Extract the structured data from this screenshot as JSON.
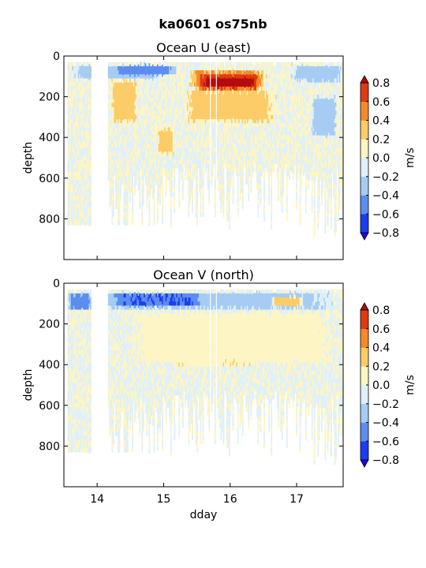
{
  "figure": {
    "title": "ka0601 os75nb"
  },
  "chart_data": [
    {
      "type": "heatmap",
      "title": "Ocean U (east)",
      "xlabel": "",
      "ylabel": "depth",
      "xlim": [
        13.5,
        17.7
      ],
      "ylim": [
        1000,
        0
      ],
      "xticks": [
        14,
        15,
        16,
        17
      ],
      "xticklabels": [],
      "yticks": [
        0,
        200,
        400,
        600,
        800
      ],
      "yticklabels": [
        "0",
        "200",
        "400",
        "600",
        "800"
      ],
      "colorbar": {
        "label": "m/s",
        "levels": [
          -0.8,
          -0.6,
          -0.4,
          -0.2,
          0.0,
          0.2,
          0.4,
          0.6,
          0.8
        ],
        "ticklabels": [
          "0.8",
          "0.6",
          "0.4",
          "0.2",
          "0.0",
          "−0.2",
          "−0.4",
          "−0.6",
          "−0.8"
        ],
        "colors": [
          "#2a00e0",
          "#1c3cf0",
          "#5c8ef0",
          "#a6ccf4",
          "#dff0fa",
          "#fdf5c4",
          "#fbcc68",
          "#f58a28",
          "#e03a10",
          "#b40a10"
        ]
      },
      "features": [
        {
          "x": [
            15.35,
            16.55
          ],
          "depth": [
            60,
            140
          ],
          "value": 0.5
        },
        {
          "x": [
            15.45,
            16.5
          ],
          "depth": [
            80,
            160
          ],
          "value": 0.7
        },
        {
          "x": [
            15.55,
            16.4
          ],
          "depth": [
            90,
            150
          ],
          "value": 0.9
        },
        {
          "x": [
            15.25,
            16.7
          ],
          "depth": [
            150,
            320
          ],
          "value": 0.3
        },
        {
          "x": [
            14.2,
            14.6
          ],
          "depth": [
            100,
            330
          ],
          "value": 0.3
        },
        {
          "x": [
            14.9,
            15.15
          ],
          "depth": [
            340,
            480
          ],
          "value": 0.3
        },
        {
          "x": [
            13.55,
            15.0
          ],
          "depth": [
            30,
            110
          ],
          "value": -0.3
        },
        {
          "x": [
            14.2,
            15.2
          ],
          "depth": [
            30,
            90
          ],
          "value": -0.5
        },
        {
          "x": [
            16.9,
            17.7
          ],
          "depth": [
            30,
            120
          ],
          "value": -0.3
        },
        {
          "x": [
            17.2,
            17.6
          ],
          "depth": [
            180,
            400
          ],
          "value": -0.3
        }
      ]
    },
    {
      "type": "heatmap",
      "title": "Ocean V (north)",
      "xlabel": "dday",
      "ylabel": "depth",
      "xlim": [
        13.5,
        17.7
      ],
      "ylim": [
        1000,
        0
      ],
      "xticks": [
        14,
        15,
        16,
        17
      ],
      "xticklabels": [
        "14",
        "15",
        "16",
        "17"
      ],
      "yticks": [
        0,
        200,
        400,
        600,
        800
      ],
      "yticklabels": [
        "0",
        "200",
        "400",
        "600",
        "800"
      ],
      "colorbar": {
        "label": "m/s",
        "levels": [
          -0.8,
          -0.6,
          -0.4,
          -0.2,
          0.0,
          0.2,
          0.4,
          0.6,
          0.8
        ],
        "ticklabels": [
          "0.8",
          "0.6",
          "0.4",
          "0.2",
          "0.0",
          "−0.2",
          "−0.4",
          "−0.6",
          "−0.8"
        ],
        "colors": [
          "#2a00e0",
          "#1c3cf0",
          "#5c8ef0",
          "#a6ccf4",
          "#dff0fa",
          "#fdf5c4",
          "#fbcc68",
          "#f58a28",
          "#e03a10",
          "#b40a10"
        ]
      },
      "features": [
        {
          "x": [
            13.55,
            17.7
          ],
          "depth": [
            30,
            120
          ],
          "value": -0.3
        },
        {
          "x": [
            14.2,
            15.6
          ],
          "depth": [
            40,
            110
          ],
          "value": -0.6
        },
        {
          "x": [
            13.55,
            13.9
          ],
          "depth": [
            40,
            120
          ],
          "value": -0.5
        },
        {
          "x": [
            16.6,
            17.1
          ],
          "depth": [
            50,
            110
          ],
          "value": 0.3
        },
        {
          "x": [
            15.1,
            16.4
          ],
          "depth": [
            250,
            400
          ],
          "value": 0.3
        },
        {
          "x": [
            14.4,
            17.7
          ],
          "depth": [
            120,
            400
          ],
          "value": 0.1
        }
      ]
    }
  ]
}
